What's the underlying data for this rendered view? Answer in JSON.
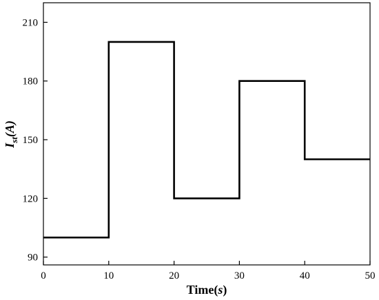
{
  "chart_data": {
    "type": "line",
    "step": true,
    "xlabel_main": "Time(",
    "xlabel_unit": "s",
    "xlabel_close": ")",
    "ylabel_main": "I",
    "ylabel_sub": "st",
    "ylabel_unit": "(A)",
    "xlim": [
      0,
      50
    ],
    "ylim": [
      86,
      220
    ],
    "xticks": [
      0,
      10,
      20,
      30,
      40,
      50
    ],
    "yticks": [
      90,
      120,
      150,
      180,
      210
    ],
    "grid": false,
    "series": [
      {
        "x": [
          0,
          10,
          10,
          20,
          20,
          30,
          30,
          40,
          40,
          50
        ],
        "y": [
          100,
          100,
          200,
          200,
          120,
          120,
          180,
          180,
          140,
          140
        ]
      }
    ],
    "colors": {
      "line": "#000000",
      "axis": "#000000"
    }
  }
}
